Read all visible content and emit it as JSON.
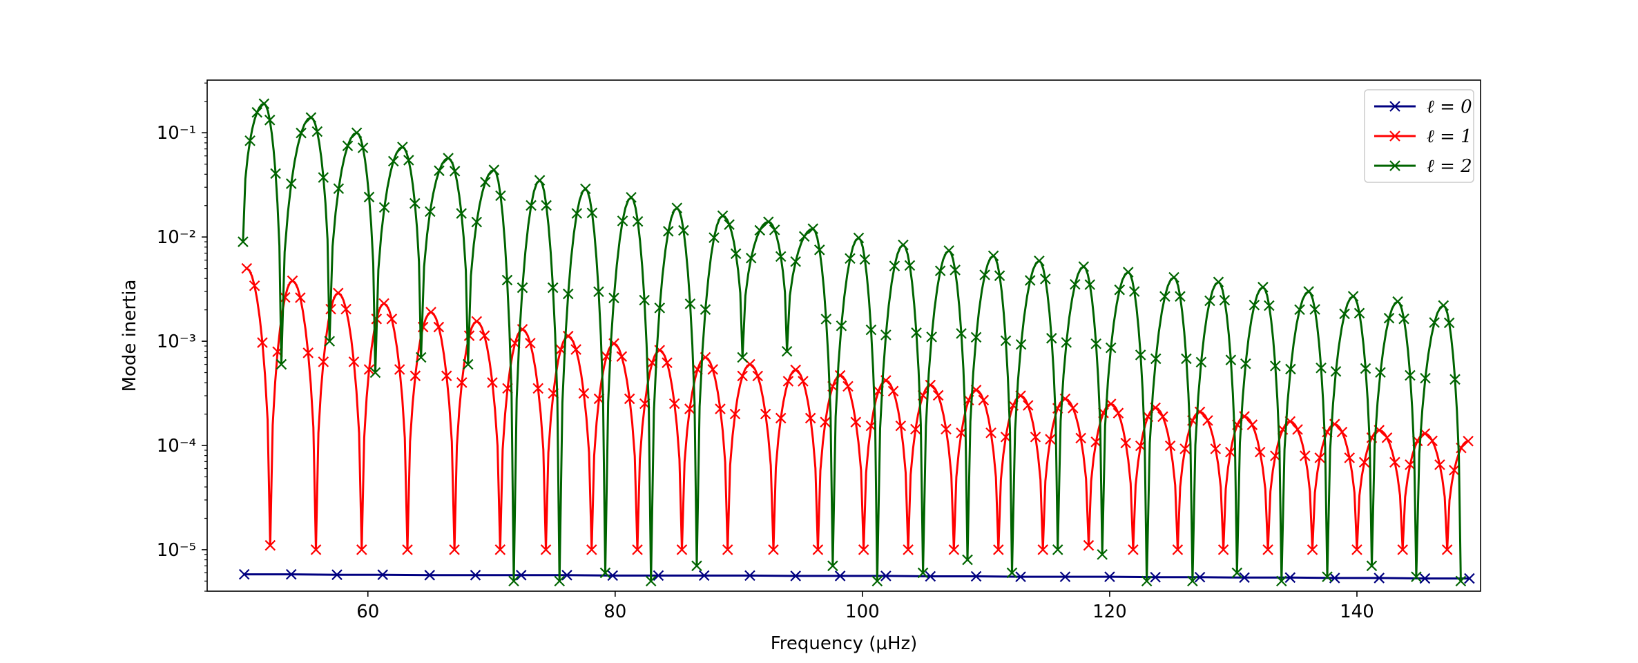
{
  "chart_data": {
    "type": "line",
    "xlabel": "Frequency (μHz)",
    "ylabel": "Mode inertia",
    "xlim": [
      47,
      150
    ],
    "ylim": [
      4e-06,
      0.32
    ],
    "yscale": "log",
    "grid": false,
    "legend_position": "top-right",
    "xticks": [
      60,
      80,
      100,
      120,
      140
    ],
    "xtick_labels": [
      "60",
      "80",
      "100",
      "120",
      "140"
    ],
    "yticks": [
      1e-05,
      0.0001,
      0.001,
      0.01,
      0.1
    ],
    "ytick_labels": [
      "10⁻⁵",
      "10⁻⁴",
      "10⁻³",
      "10⁻²",
      "10⁻¹"
    ],
    "marker": "x",
    "series": [
      {
        "name": "ℓ = 0",
        "color": "#000080",
        "x": [
          50.0,
          53.8,
          57.5,
          61.2,
          65.0,
          68.7,
          72.4,
          76.1,
          79.8,
          83.5,
          87.2,
          90.9,
          94.6,
          98.2,
          101.9,
          105.5,
          109.2,
          112.8,
          116.4,
          120.0,
          123.7,
          127.3,
          130.9,
          134.6,
          138.2,
          141.8,
          145.5,
          149.1
        ],
        "y": [
          5.8e-06,
          5.8e-06,
          5.75e-06,
          5.75e-06,
          5.7e-06,
          5.7e-06,
          5.7e-06,
          5.7e-06,
          5.65e-06,
          5.65e-06,
          5.65e-06,
          5.65e-06,
          5.6e-06,
          5.6e-06,
          5.6e-06,
          5.55e-06,
          5.55e-06,
          5.5e-06,
          5.5e-06,
          5.5e-06,
          5.45e-06,
          5.45e-06,
          5.4e-06,
          5.4e-06,
          5.35e-06,
          5.35e-06,
          5.3e-06,
          5.3e-06
        ]
      },
      {
        "name": "ℓ = 1",
        "color": "#ff0000",
        "minima": [
          52.1,
          55.8,
          59.5,
          63.2,
          67.0,
          70.7,
          74.4,
          78.1,
          81.8,
          85.4,
          89.1,
          92.8,
          96.4,
          100.1,
          103.7,
          107.4,
          111.0,
          114.6,
          118.3,
          121.9,
          125.5,
          129.2,
          132.8,
          136.4,
          140.0,
          143.7,
          147.3
        ],
        "minima_values": [
          1.1e-05,
          1e-05,
          1e-05,
          1e-05,
          1e-05,
          1e-05,
          1e-05,
          1e-05,
          1e-05,
          1e-05,
          1e-05,
          1e-05,
          1e-05,
          1e-05,
          1e-05,
          1e-05,
          1e-05,
          1e-05,
          1.1e-05,
          1e-05,
          1e-05,
          1e-05,
          1e-05,
          1e-05,
          1e-05,
          1e-05,
          1e-05
        ],
        "maxima": [
          50.2,
          53.9,
          57.6,
          61.3,
          65.1,
          68.8,
          72.5,
          76.2,
          79.9,
          83.6,
          87.3,
          90.9,
          94.6,
          98.2,
          101.9,
          105.5,
          109.2,
          112.8,
          116.4,
          120.1,
          123.7,
          127.3,
          130.9,
          134.6,
          138.2,
          141.8,
          145.5,
          149.0
        ],
        "maxima_values": [
          0.005,
          0.0038,
          0.0029,
          0.0023,
          0.0019,
          0.00155,
          0.0013,
          0.00112,
          0.00095,
          0.00082,
          0.0007,
          0.0006,
          0.00053,
          0.00047,
          0.00042,
          0.00038,
          0.00034,
          0.0003,
          0.00028,
          0.00025,
          0.00023,
          0.00021,
          0.00019,
          0.00017,
          0.00016,
          0.00014,
          0.00013,
          0.00011
        ]
      },
      {
        "name": "ℓ = 2",
        "color": "#006400",
        "minima": [
          49.9,
          53.0,
          56.9,
          60.6,
          64.3,
          68.1,
          71.8,
          75.5,
          79.2,
          82.9,
          86.6,
          90.3,
          93.9,
          97.6,
          101.2,
          104.9,
          108.5,
          112.1,
          115.8,
          119.4,
          123.0,
          126.7,
          130.3,
          133.9,
          137.6,
          141.2,
          144.8,
          148.4
        ],
        "minima_values": [
          0.009,
          0.0006,
          0.001,
          0.0005,
          0.0007,
          0.0006,
          5e-06,
          5e-06,
          6e-06,
          5e-06,
          7e-06,
          0.0007,
          0.0008,
          7e-06,
          5e-06,
          6e-06,
          8e-06,
          6e-06,
          1e-05,
          9e-06,
          5e-06,
          5e-06,
          6e-06,
          5e-06,
          5.5e-06,
          7e-06,
          5.5e-06,
          5e-06
        ],
        "maxima": [
          51.6,
          55.4,
          59.1,
          62.8,
          66.5,
          70.2,
          73.9,
          77.6,
          81.3,
          85.0,
          88.7,
          92.4,
          96.0,
          99.7,
          103.3,
          107.0,
          110.6,
          114.3,
          117.9,
          121.5,
          125.2,
          128.8,
          132.4,
          136.1,
          139.7,
          143.3,
          147.0
        ],
        "maxima_values": [
          0.19,
          0.14,
          0.1,
          0.073,
          0.057,
          0.044,
          0.035,
          0.029,
          0.024,
          0.019,
          0.016,
          0.014,
          0.012,
          0.0098,
          0.0084,
          0.0074,
          0.0066,
          0.0059,
          0.0052,
          0.0046,
          0.0041,
          0.0037,
          0.0033,
          0.003,
          0.0027,
          0.0024,
          0.0022
        ]
      }
    ]
  }
}
